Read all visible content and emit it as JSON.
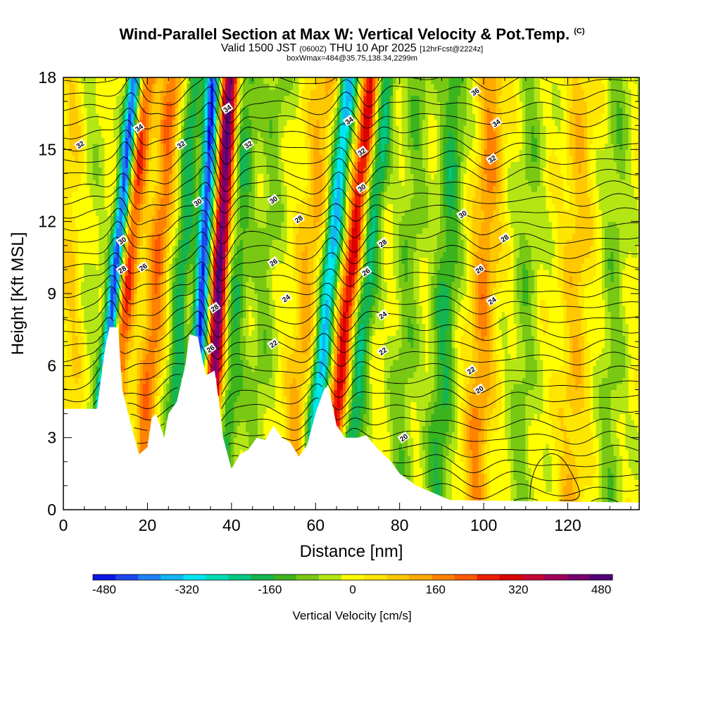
{
  "header": {
    "title": "Wind-Parallel Section at Max W: Vertical Velocity & Pot.Temp.",
    "title_mark": "(C)",
    "valid_prefix": "Valid 1500 JST",
    "valid_zulu": "(0600Z)",
    "valid_date": "THU 10 Apr 2025",
    "forecast_note": "[12hrFcst@2224z]",
    "box_note": "boxWmax=484@35.75,138.34,2299m"
  },
  "chart_data": {
    "type": "heatmap",
    "xlabel": "Distance [nm]",
    "ylabel": "Height [Kft MSL]",
    "xlim": [
      0,
      137
    ],
    "ylim": [
      0,
      18
    ],
    "x_ticks": [
      0,
      20,
      40,
      60,
      80,
      100,
      120
    ],
    "y_ticks": [
      0,
      3,
      6,
      9,
      12,
      15,
      18
    ],
    "grid": false,
    "colorbar": {
      "label": "Vertical Velocity [cm/s]",
      "ticks": [
        -480,
        -320,
        -160,
        0,
        160,
        320,
        480
      ],
      "placement": "bottom",
      "colors": [
        "#0a14e6",
        "#1e46f0",
        "#1e82f5",
        "#14b4f5",
        "#00e6f5",
        "#00dcb4",
        "#00c882",
        "#14b450",
        "#3cb41e",
        "#78c814",
        "#b4e614",
        "#ffff00",
        "#ffe600",
        "#ffc800",
        "#ffaa00",
        "#ff8200",
        "#ff5a00",
        "#f01e00",
        "#dc0000",
        "#c80032",
        "#a0005a",
        "#78006e",
        "#500078"
      ]
    },
    "terrain_kft": [
      [
        0,
        4.2
      ],
      [
        8,
        4.2
      ],
      [
        10,
        6.8
      ],
      [
        11,
        7.6
      ],
      [
        13,
        7.6
      ],
      [
        14,
        5
      ],
      [
        16,
        3.6
      ],
      [
        18,
        2.3
      ],
      [
        20,
        2.6
      ],
      [
        21,
        3.8
      ],
      [
        22,
        4
      ],
      [
        24,
        3
      ],
      [
        25,
        4
      ],
      [
        27,
        4.5
      ],
      [
        29,
        6
      ],
      [
        30,
        7.3
      ],
      [
        32,
        7.2
      ],
      [
        33,
        6.3
      ],
      [
        34,
        5.6
      ],
      [
        36,
        5.8
      ],
      [
        37,
        4.5
      ],
      [
        38,
        3
      ],
      [
        40,
        1.7
      ],
      [
        42,
        2.3
      ],
      [
        44,
        2.5
      ],
      [
        46,
        3
      ],
      [
        48,
        2.9
      ],
      [
        50,
        3.5
      ],
      [
        52,
        3
      ],
      [
        54,
        2.8
      ],
      [
        56,
        2.2
      ],
      [
        58,
        2.7
      ],
      [
        60,
        4
      ],
      [
        62,
        5
      ],
      [
        63,
        5.2
      ],
      [
        65,
        3.5
      ],
      [
        67,
        3
      ],
      [
        70,
        3
      ],
      [
        72,
        3.1
      ],
      [
        75,
        2.5
      ],
      [
        78,
        2
      ],
      [
        80,
        1.5
      ],
      [
        84,
        1
      ],
      [
        88,
        0.7
      ],
      [
        92,
        0.4
      ],
      [
        137,
        0.3
      ]
    ],
    "theta_contour_labels": [
      {
        "v": 32,
        "x": 4,
        "y": 15.2
      },
      {
        "v": 34,
        "x": 18,
        "y": 15.9
      },
      {
        "v": 32,
        "x": 28,
        "y": 15.2
      },
      {
        "v": 34,
        "x": 39,
        "y": 16.7
      },
      {
        "v": 32,
        "x": 44,
        "y": 15.2
      },
      {
        "v": 34,
        "x": 68,
        "y": 16.2
      },
      {
        "v": 32,
        "x": 71,
        "y": 14.9
      },
      {
        "v": 36,
        "x": 98,
        "y": 17.4
      },
      {
        "v": 34,
        "x": 103,
        "y": 16.1
      },
      {
        "v": 32,
        "x": 102,
        "y": 14.6
      },
      {
        "v": 30,
        "x": 32,
        "y": 12.8
      },
      {
        "v": 30,
        "x": 50,
        "y": 12.9
      },
      {
        "v": 28,
        "x": 56,
        "y": 12.1
      },
      {
        "v": 30,
        "x": 71,
        "y": 13.4
      },
      {
        "v": 30,
        "x": 95,
        "y": 12.3
      },
      {
        "v": 30,
        "x": 14,
        "y": 11.2
      },
      {
        "v": 28,
        "x": 76,
        "y": 11.1
      },
      {
        "v": 28,
        "x": 105,
        "y": 11.3
      },
      {
        "v": 28,
        "x": 14,
        "y": 10
      },
      {
        "v": 26,
        "x": 19,
        "y": 10.1
      },
      {
        "v": 26,
        "x": 50,
        "y": 10.3
      },
      {
        "v": 26,
        "x": 72,
        "y": 9.9
      },
      {
        "v": 26,
        "x": 99,
        "y": 10
      },
      {
        "v": 24,
        "x": 53,
        "y": 8.8
      },
      {
        "v": 28,
        "x": 36,
        "y": 8.4
      },
      {
        "v": 24,
        "x": 76,
        "y": 8.1
      },
      {
        "v": 24,
        "x": 102,
        "y": 8.7
      },
      {
        "v": 26,
        "x": 35,
        "y": 6.7
      },
      {
        "v": 22,
        "x": 50,
        "y": 6.9
      },
      {
        "v": 22,
        "x": 76,
        "y": 6.6
      },
      {
        "v": 22,
        "x": 97,
        "y": 5.8
      },
      {
        "v": 20,
        "x": 99,
        "y": 5
      },
      {
        "v": 20,
        "x": 81,
        "y": 3
      }
    ]
  }
}
